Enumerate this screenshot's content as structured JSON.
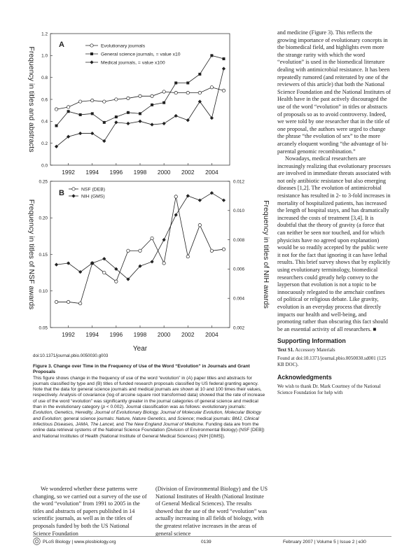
{
  "figure": {
    "panel_a": {
      "letter": "A",
      "ylabel": "Frequency in titles and abstracts",
      "legend": [
        "Evolutionary journals",
        "General science journals, = value x10",
        "Medical journals, = value x100"
      ]
    },
    "panel_b": {
      "letter": "B",
      "ylabel_left": "Frequency in titles of NSF awards",
      "ylabel_right": "Frequency in titles of NIH awards",
      "legend": [
        "NSF (DEB)",
        "NIH (GMS)"
      ]
    },
    "xlabel": "Year"
  },
  "chart_data": [
    {
      "type": "line",
      "x": [
        1991,
        1992,
        1993,
        1994,
        1995,
        1996,
        1997,
        1998,
        1999,
        2000,
        2001,
        2002,
        2003,
        2004,
        2005
      ],
      "xticks": [
        1992,
        1994,
        1996,
        1998,
        2000,
        2002,
        2004
      ],
      "ylim": [
        0,
        1.2
      ],
      "yticks": [
        0.0,
        0.2,
        0.4,
        0.6,
        0.8,
        1.0,
        1.2
      ],
      "series": [
        {
          "name": "Evolutionary journals",
          "values": [
            0.51,
            0.53,
            0.58,
            0.59,
            0.58,
            0.6,
            0.61,
            0.63,
            0.63,
            0.67,
            0.66,
            0.66,
            0.66,
            0.71,
            0.68
          ]
        },
        {
          "name": "General science journals, = value x10",
          "values": [
            0.36,
            0.49,
            0.46,
            0.47,
            0.39,
            0.44,
            0.48,
            0.47,
            0.55,
            0.57,
            0.75,
            0.75,
            0.83,
            1.0,
            0.97
          ]
        },
        {
          "name": "Medical journals, = value x100",
          "values": [
            0.17,
            0.26,
            0.29,
            0.29,
            0.22,
            0.39,
            0.38,
            0.4,
            0.37,
            0.38,
            0.45,
            0.41,
            0.58,
            0.43,
            0.88
          ]
        }
      ]
    },
    {
      "type": "line",
      "x": [
        1991,
        1992,
        1993,
        1994,
        1995,
        1996,
        1997,
        1998,
        1999,
        2000,
        2001,
        2002,
        2003,
        2004,
        2005
      ],
      "xticks": [
        1992,
        1994,
        1996,
        1998,
        2000,
        2002,
        2004
      ],
      "ylim": [
        0.05,
        0.25
      ],
      "yticks": [
        0.05,
        0.1,
        0.15,
        0.2,
        0.25
      ],
      "y2lim": [
        0.002,
        0.012
      ],
      "y2ticks": [
        "0.002",
        "0.004",
        "0.006",
        "0.008",
        "0.010",
        "0.012"
      ],
      "series": [
        {
          "name": "NSF (DEB)",
          "axis": "left",
          "values": [
            0.085,
            0.085,
            0.083,
            0.138,
            0.125,
            0.113,
            0.155,
            0.155,
            0.172,
            0.138,
            0.229,
            0.147,
            0.19,
            0.155,
            0.157
          ]
        },
        {
          "name": "NIH (GMS)",
          "axis": "right",
          "values": [
            0.0063,
            0.0064,
            0.0058,
            0.0064,
            0.0067,
            0.006,
            0.0053,
            0.0062,
            0.0065,
            0.008,
            0.0097,
            0.011,
            0.0107,
            0.0112,
            0.0107
          ]
        }
      ]
    }
  ],
  "doi": "doi:10.1371/journal.pbio.0050030.g003",
  "caption": {
    "title": "Figure 3. Change over Time in the Frequency of Use of the Word “Evolution” in Journals and Grant Proposals",
    "p1": "This figure shows change in the frequency of use of the word “evolution” in (A) paper titles and abstracts for journals classified by type and (B) titles of funded research proposals classified by US federal granting agency. Note that the data for general science journals and medical journals are shown at 10 and 100 times their values, respectively. Analysis of covariance (log of arcsine square root transformed data) showed that the rate of increase of use of the word “evolution” was significantly greater in the journal categories of general science and medical than in the evolutionary category (",
    "p_stat": "p",
    "p2": " < 0.002). Journal classification was as follows: evolutionary journals: ",
    "evo_journals": "Evolution, Genetics, Heredity, Journal of Evolutionary Biology, Journal of Molecular Evolution, Molecular Biology and Evolution",
    "p3": "; general science journals: ",
    "gen_journals": "Nature, Nature Genetics,",
    "p4": " and ",
    "gen_journals2": "Science",
    "p5": "; medical journals: ",
    "med_journals": "BMJ, Clinical Infectious Diseases, JAMA, The Lancet,",
    "p6": " and ",
    "med_journals2": "The New England Journal of Medicine",
    "p7": ". Funding data are from the online data retrieval systems of the National Science Foundation (Division of Environmental Biology) (NSF [DEB]) and National Institutes of Health (National Institute of General Medical Sciences) (NIH [GMS])."
  },
  "body": {
    "col3_p1": "and medicine (Figure 3). This reflects the growing importance of evolutionary concepts in the biomedical field, and highlights even more the strange rarity with which the word “evolution” is used in the biomedical literature dealing with antimicrobial resistance. It has been repeatedly rumored (and reiterated by one of the reviewers of this article) that both the National Science Foundation and the National Institutes of Health have in the past actively discouraged the use of the word “evolution” in titles or abstracts of proposals so as to avoid controversy. Indeed, we were told by one researcher that in the title of one proposal, the authors were urged to change the phrase “the evolution of sex” to the more arcanely eloquent wording “the advantage of bi-parental genomic recombination.”",
    "col3_p2": "Nowadays, medical researchers are increasingly realizing that evolutionary processes are involved in immediate threats associated with not only antibiotic resistance but also emerging diseases [1,2]. The evolution of antimicrobial resistance has resulted in 2- to 3-fold increases in mortality of hospitalized patients, has increased the length of hospital stays, and has dramatically increased the costs of treatment [3,4]. It is doubtful that the theory of gravity (a force that can neither be seen nor touched, and for which physicists have no agreed upon explanation) would be so readily accepted by the public were it not for the fact that ignoring it can have lethal results. This brief survey shows that by explicitly using evolutionary terminology, biomedical researchers could greatly help convey to the layperson that evolution is not a topic to be innocuously relegated to the armchair confines of political or religious debate. Like gravity, evolution is an everyday process that directly impacts our health and well-being, and promoting rather than obscuring this fact should be an essential activity of all researchers. ■",
    "supporting_heading": "Supporting Information",
    "text_s1_label": "Text S1.",
    "text_s1": " Accessory Materials",
    "text_s1_found": "Found at doi:10.1371/journal.pbio.0050030.sd001 (125 KB DOC).",
    "ack_heading": "Acknowledgments",
    "ack_text": "We wish to thank Dr. Mark Courtney of the National Science Foundation for help with",
    "col1_bottom": "We wondered whether these patterns were changing, so we carried out a survey of the use of the word “evolution” from 1991 to 2005 in the titles and abstracts of papers published in 14 scientific journals, as well as in the titles of proposals funded by both the US National Science Foundation",
    "col2_bottom": "(Division of Environmental Biology) and the US National Institutes of Health (National Institute of General Medical Sciences). The results showed that the use of the word “evolution” was actually increasing in all fields of biology, with the greatest relative increases in the areas of general science"
  },
  "footer": {
    "journal": "PLoS Biology | www.plosbiology.org",
    "page": "0139",
    "issue": "February 2007 | Volume 5 | Issue 2 | e30"
  }
}
